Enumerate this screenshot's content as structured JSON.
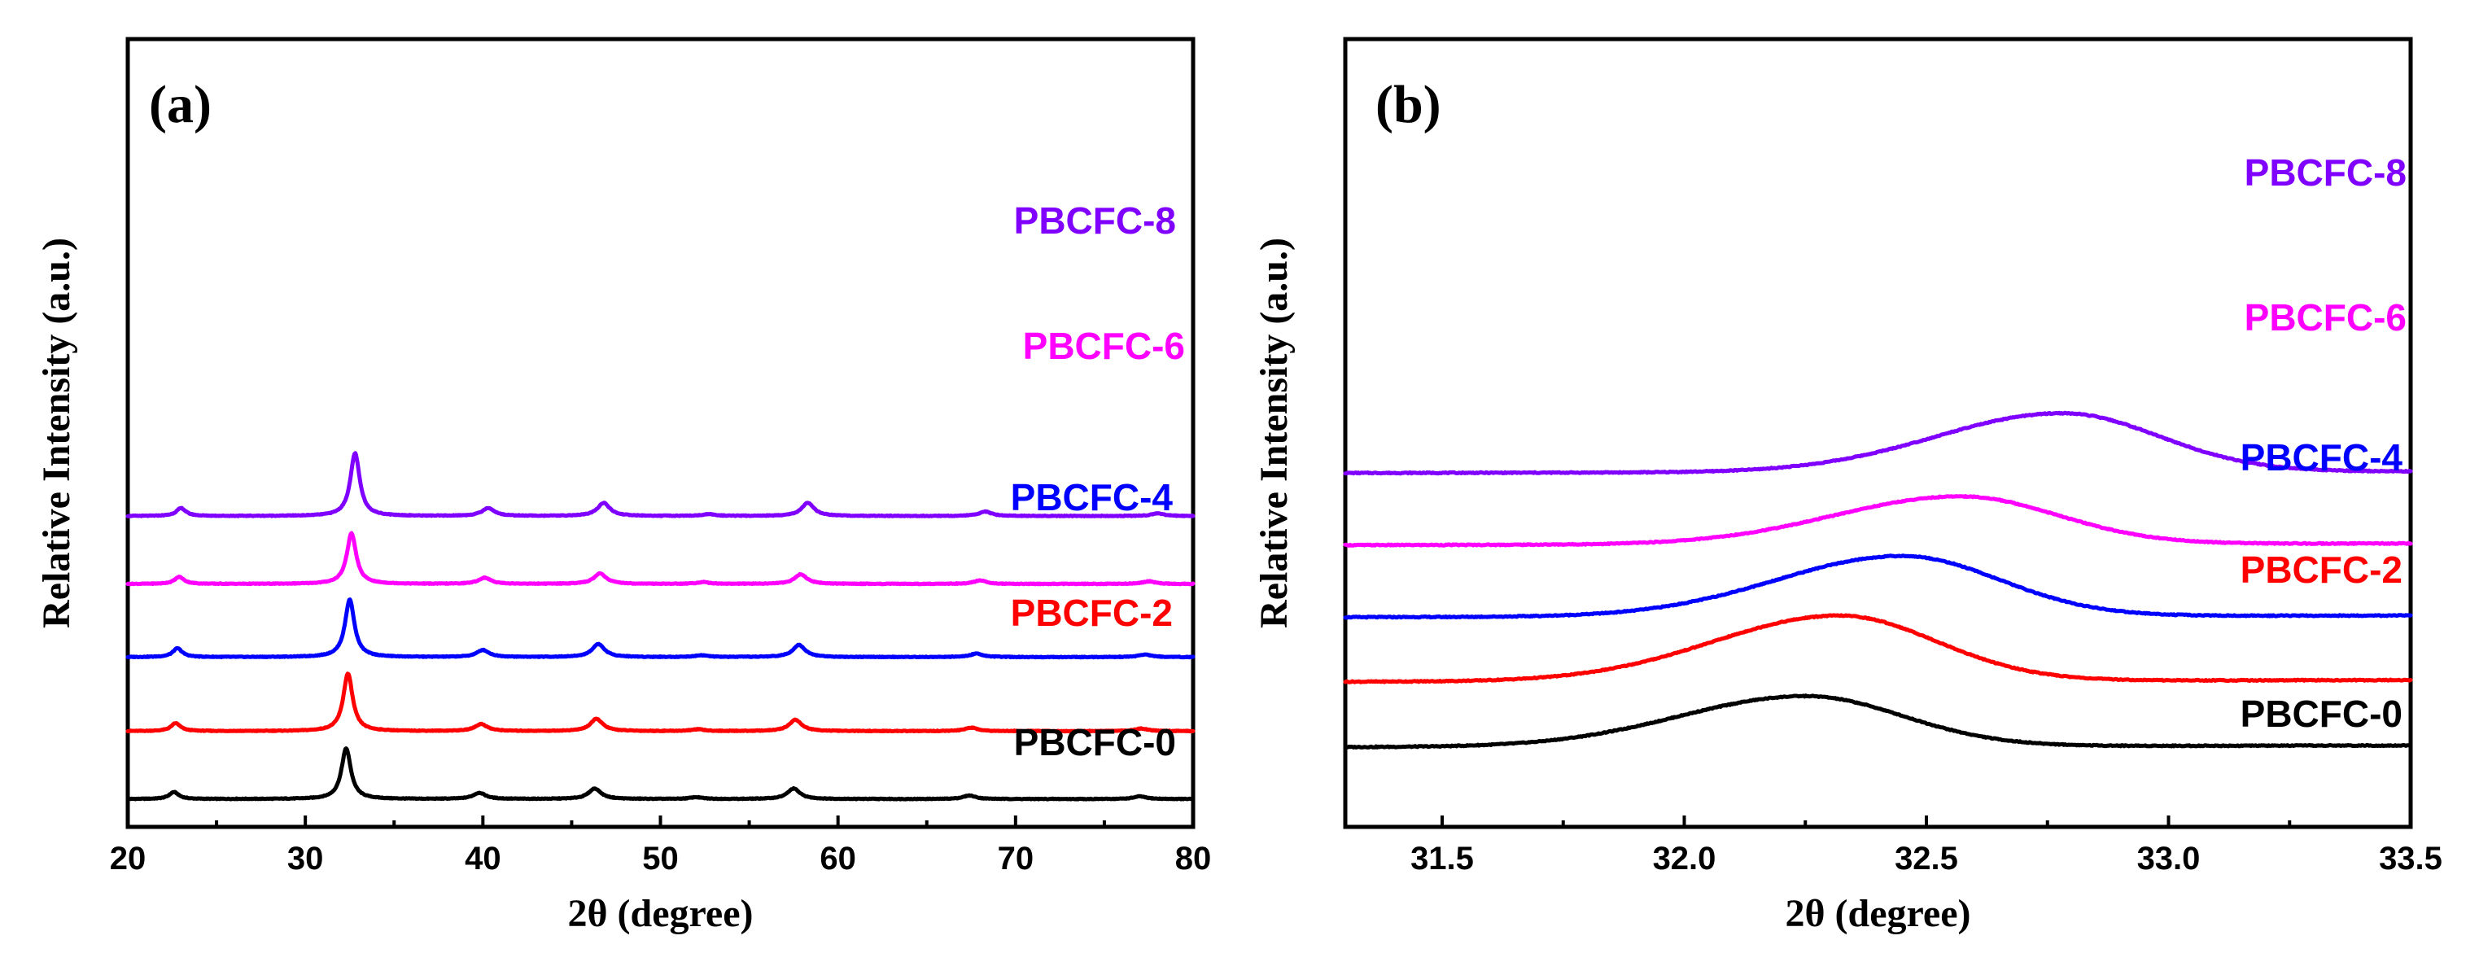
{
  "chart_data": [
    {
      "panel": "(a)",
      "type": "line",
      "xlabel": "2θ (degree)",
      "ylabel": "Relative Intensity (a.u.)",
      "xlim": [
        20,
        80
      ],
      "xticks": [
        "20",
        "30",
        "40",
        "50",
        "60",
        "70",
        "80"
      ],
      "yticks": false,
      "series": [
        {
          "name": "PBCFC-0",
          "color": "#000000",
          "offset": 0.0,
          "peaks": [
            [
              22.6,
              0.08
            ],
            [
              32.3,
              0.58
            ],
            [
              39.8,
              0.07
            ],
            [
              46.3,
              0.12
            ],
            [
              52.0,
              0.02
            ],
            [
              57.5,
              0.12
            ],
            [
              67.4,
              0.04
            ],
            [
              77.0,
              0.03
            ]
          ]
        },
        {
          "name": "PBCFC-2",
          "color": "#ff0000",
          "offset": 0.78,
          "peaks": [
            [
              22.7,
              0.09
            ],
            [
              32.4,
              0.66
            ],
            [
              39.9,
              0.08
            ],
            [
              46.4,
              0.14
            ],
            [
              52.1,
              0.02
            ],
            [
              57.6,
              0.13
            ],
            [
              67.5,
              0.04
            ],
            [
              77.1,
              0.03
            ]
          ]
        },
        {
          "name": "PBCFC-4",
          "color": "#0000ff",
          "offset": 1.63,
          "peaks": [
            [
              22.8,
              0.1
            ],
            [
              32.5,
              0.66
            ],
            [
              40.0,
              0.08
            ],
            [
              46.5,
              0.15
            ],
            [
              52.3,
              0.02
            ],
            [
              57.8,
              0.14
            ],
            [
              67.8,
              0.04
            ],
            [
              77.3,
              0.03
            ]
          ]
        },
        {
          "name": "PBCFC-6",
          "color": "#ff00ff",
          "offset": 2.47,
          "peaks": [
            [
              22.9,
              0.08
            ],
            [
              32.6,
              0.58
            ],
            [
              40.1,
              0.07
            ],
            [
              46.6,
              0.12
            ],
            [
              52.4,
              0.02
            ],
            [
              57.9,
              0.11
            ],
            [
              68.0,
              0.04
            ],
            [
              77.5,
              0.03
            ]
          ]
        },
        {
          "name": "PBCFC-8",
          "color": "#8000ff",
          "offset": 3.25,
          "peaks": [
            [
              23.0,
              0.09
            ],
            [
              32.8,
              0.72
            ],
            [
              40.3,
              0.09
            ],
            [
              46.8,
              0.15
            ],
            [
              52.7,
              0.02
            ],
            [
              58.3,
              0.15
            ],
            [
              68.3,
              0.05
            ],
            [
              78.0,
              0.03
            ]
          ]
        }
      ]
    },
    {
      "panel": "(b)",
      "type": "line",
      "xlabel": "2θ (degree)",
      "ylabel": "Relative Intensity (a.u.)",
      "xlim": [
        31.3,
        33.5
      ],
      "xticks": [
        "31.5",
        "32.0",
        "32.5",
        "33.0",
        "33.5"
      ],
      "yticks": false,
      "series": [
        {
          "name": "PBCFC-0",
          "color": "#000000",
          "offset": 0.0,
          "center": 32.25,
          "height": 0.6
        },
        {
          "name": "PBCFC-2",
          "color": "#ff0000",
          "offset": 0.78,
          "center": 32.32,
          "height": 0.78
        },
        {
          "name": "PBCFC-4",
          "color": "#0000ff",
          "offset": 1.55,
          "center": 32.45,
          "height": 0.72
        },
        {
          "name": "PBCFC-6",
          "color": "#ff00ff",
          "offset": 2.41,
          "center": 32.57,
          "height": 0.57
        },
        {
          "name": "PBCFC-8",
          "color": "#8000ff",
          "offset": 3.27,
          "center": 32.78,
          "height": 0.7
        }
      ]
    }
  ]
}
